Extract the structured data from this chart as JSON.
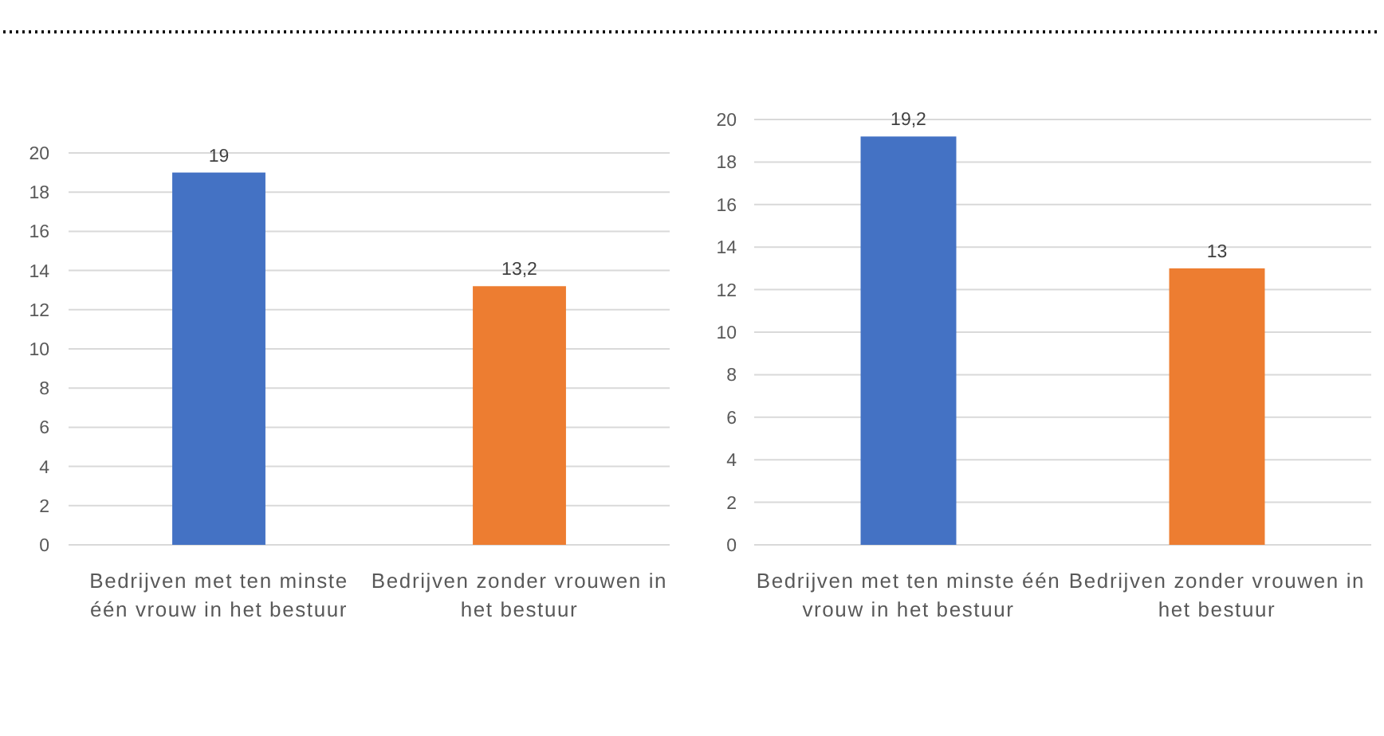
{
  "chart_data": [
    {
      "type": "bar",
      "categories": [
        "Bedrijven met ten minste één vrouw in het bestuur",
        "Bedrijven zonder vrouwen in het bestuur"
      ],
      "values": [
        19,
        13.2
      ],
      "colors": [
        "#4472c4",
        "#ed7d31"
      ],
      "value_labels": [
        "19",
        "13,2"
      ],
      "ylim": [
        0,
        20
      ],
      "yticks": [
        0,
        2,
        4,
        6,
        8,
        10,
        12,
        14,
        16,
        18,
        20
      ],
      "grid": "y"
    },
    {
      "type": "bar",
      "categories": [
        "Bedrijven met ten minste één vrouw in het bestuur",
        "Bedrijven zonder vrouwen in het bestuur"
      ],
      "values": [
        19.2,
        13
      ],
      "colors": [
        "#4472c4",
        "#ed7d31"
      ],
      "value_labels": [
        "19,2",
        "13"
      ],
      "ylim": [
        0,
        20
      ],
      "yticks": [
        0,
        2,
        4,
        6,
        8,
        10,
        12,
        14,
        16,
        18,
        20
      ],
      "grid": "y"
    }
  ]
}
